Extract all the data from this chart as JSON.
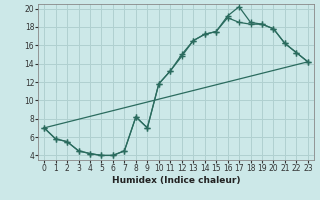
{
  "xlabel": "Humidex (Indice chaleur)",
  "bg_color": "#cce8e8",
  "grid_color": "#b0d0d0",
  "line_color": "#2a6b5e",
  "xlim": [
    -0.5,
    23.5
  ],
  "ylim": [
    3.5,
    20.5
  ],
  "xticks": [
    0,
    1,
    2,
    3,
    4,
    5,
    6,
    7,
    8,
    9,
    10,
    11,
    12,
    13,
    14,
    15,
    16,
    17,
    18,
    19,
    20,
    21,
    22,
    23
  ],
  "yticks": [
    4,
    6,
    8,
    10,
    12,
    14,
    16,
    18,
    20
  ],
  "line1_x": [
    0,
    1,
    2,
    3,
    4,
    5,
    6,
    7,
    8,
    9,
    10,
    11,
    12,
    13,
    14,
    15,
    16,
    17,
    18,
    19,
    20,
    21,
    22,
    23
  ],
  "line1_y": [
    7.0,
    5.8,
    5.5,
    4.5,
    4.2,
    4.0,
    4.0,
    4.5,
    8.2,
    7.0,
    11.8,
    13.2,
    15.0,
    16.5,
    17.2,
    17.5,
    19.2,
    20.2,
    18.5,
    18.3,
    17.8,
    16.2,
    15.2,
    14.2
  ],
  "line2_x": [
    0,
    1,
    2,
    3,
    4,
    5,
    6,
    7,
    8,
    9,
    10,
    11,
    12,
    13,
    14,
    15,
    16,
    17,
    18,
    19,
    20,
    21,
    22,
    23
  ],
  "line2_y": [
    7.0,
    5.8,
    5.5,
    4.5,
    4.2,
    4.0,
    4.0,
    4.5,
    8.2,
    7.0,
    11.8,
    13.2,
    14.8,
    16.5,
    17.2,
    17.5,
    19.0,
    18.5,
    18.3,
    18.3,
    17.8,
    16.2,
    15.2,
    14.2
  ],
  "line3_x": [
    0,
    23
  ],
  "line3_y": [
    7.0,
    14.2
  ]
}
